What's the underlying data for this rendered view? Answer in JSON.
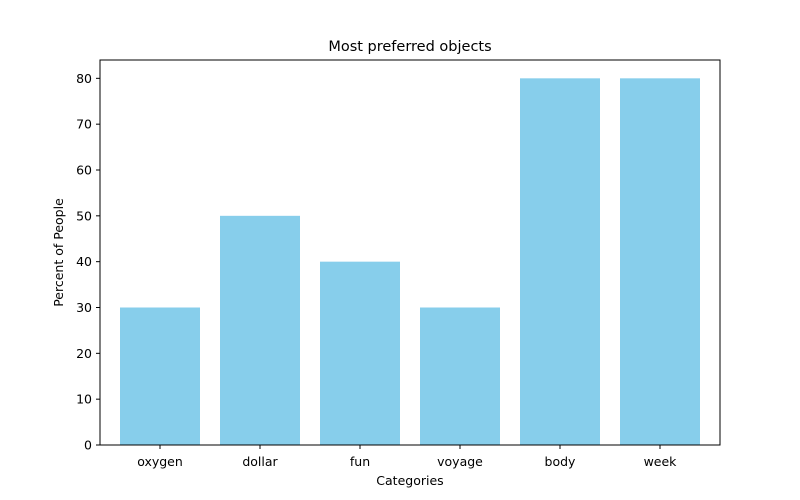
{
  "chart_data": {
    "type": "bar",
    "title": "Most preferred objects",
    "xlabel": "Categories",
    "ylabel": "Percent of People",
    "categories": [
      "oxygen",
      "dollar",
      "fun",
      "voyage",
      "body",
      "week"
    ],
    "values": [
      30,
      50,
      40,
      30,
      80,
      80
    ],
    "ylim": [
      0,
      84
    ],
    "yticks": [
      0,
      10,
      20,
      30,
      40,
      50,
      60,
      70,
      80
    ],
    "bar_color": "#87ceeb",
    "grid": false,
    "legend": "none"
  }
}
